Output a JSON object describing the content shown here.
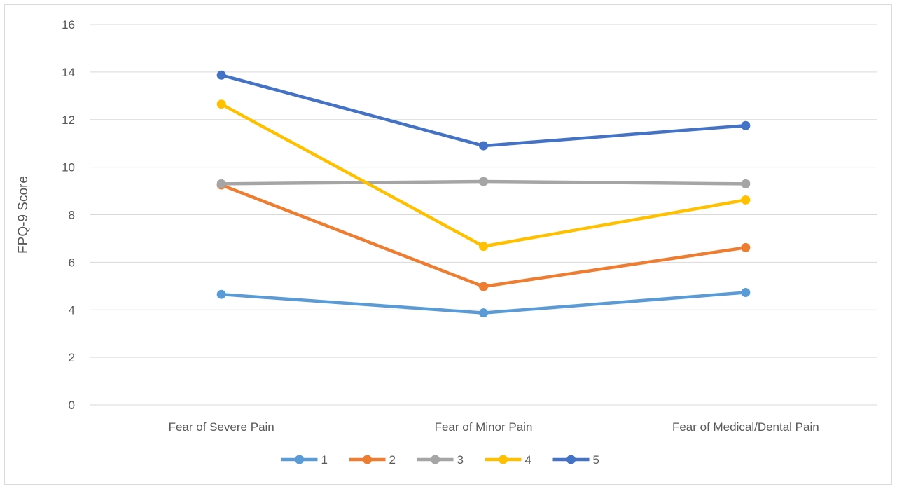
{
  "chart_data": {
    "type": "line",
    "title": "",
    "xlabel": "",
    "ylabel": "FPQ-9 Score",
    "ylim": [
      0,
      16
    ],
    "yticks": [
      0,
      2,
      4,
      6,
      8,
      10,
      12,
      14,
      16
    ],
    "grid": true,
    "legend_position": "bottom",
    "categories": [
      "Fear of Severe Pain",
      "Fear of Minor Pain",
      "Fear of Medical/Dental Pain"
    ],
    "series": [
      {
        "name": "1",
        "color": "#5B9BD5",
        "values": [
          4.65,
          3.87,
          4.73
        ]
      },
      {
        "name": "2",
        "color": "#ED7D31",
        "values": [
          9.25,
          4.98,
          6.62
        ]
      },
      {
        "name": "3",
        "color": "#A5A5A5",
        "values": [
          9.3,
          9.4,
          9.3
        ]
      },
      {
        "name": "4",
        "color": "#FFC000",
        "values": [
          12.65,
          6.67,
          8.62
        ]
      },
      {
        "name": "5",
        "color": "#4472C4",
        "values": [
          13.87,
          10.9,
          11.75
        ]
      }
    ]
  }
}
